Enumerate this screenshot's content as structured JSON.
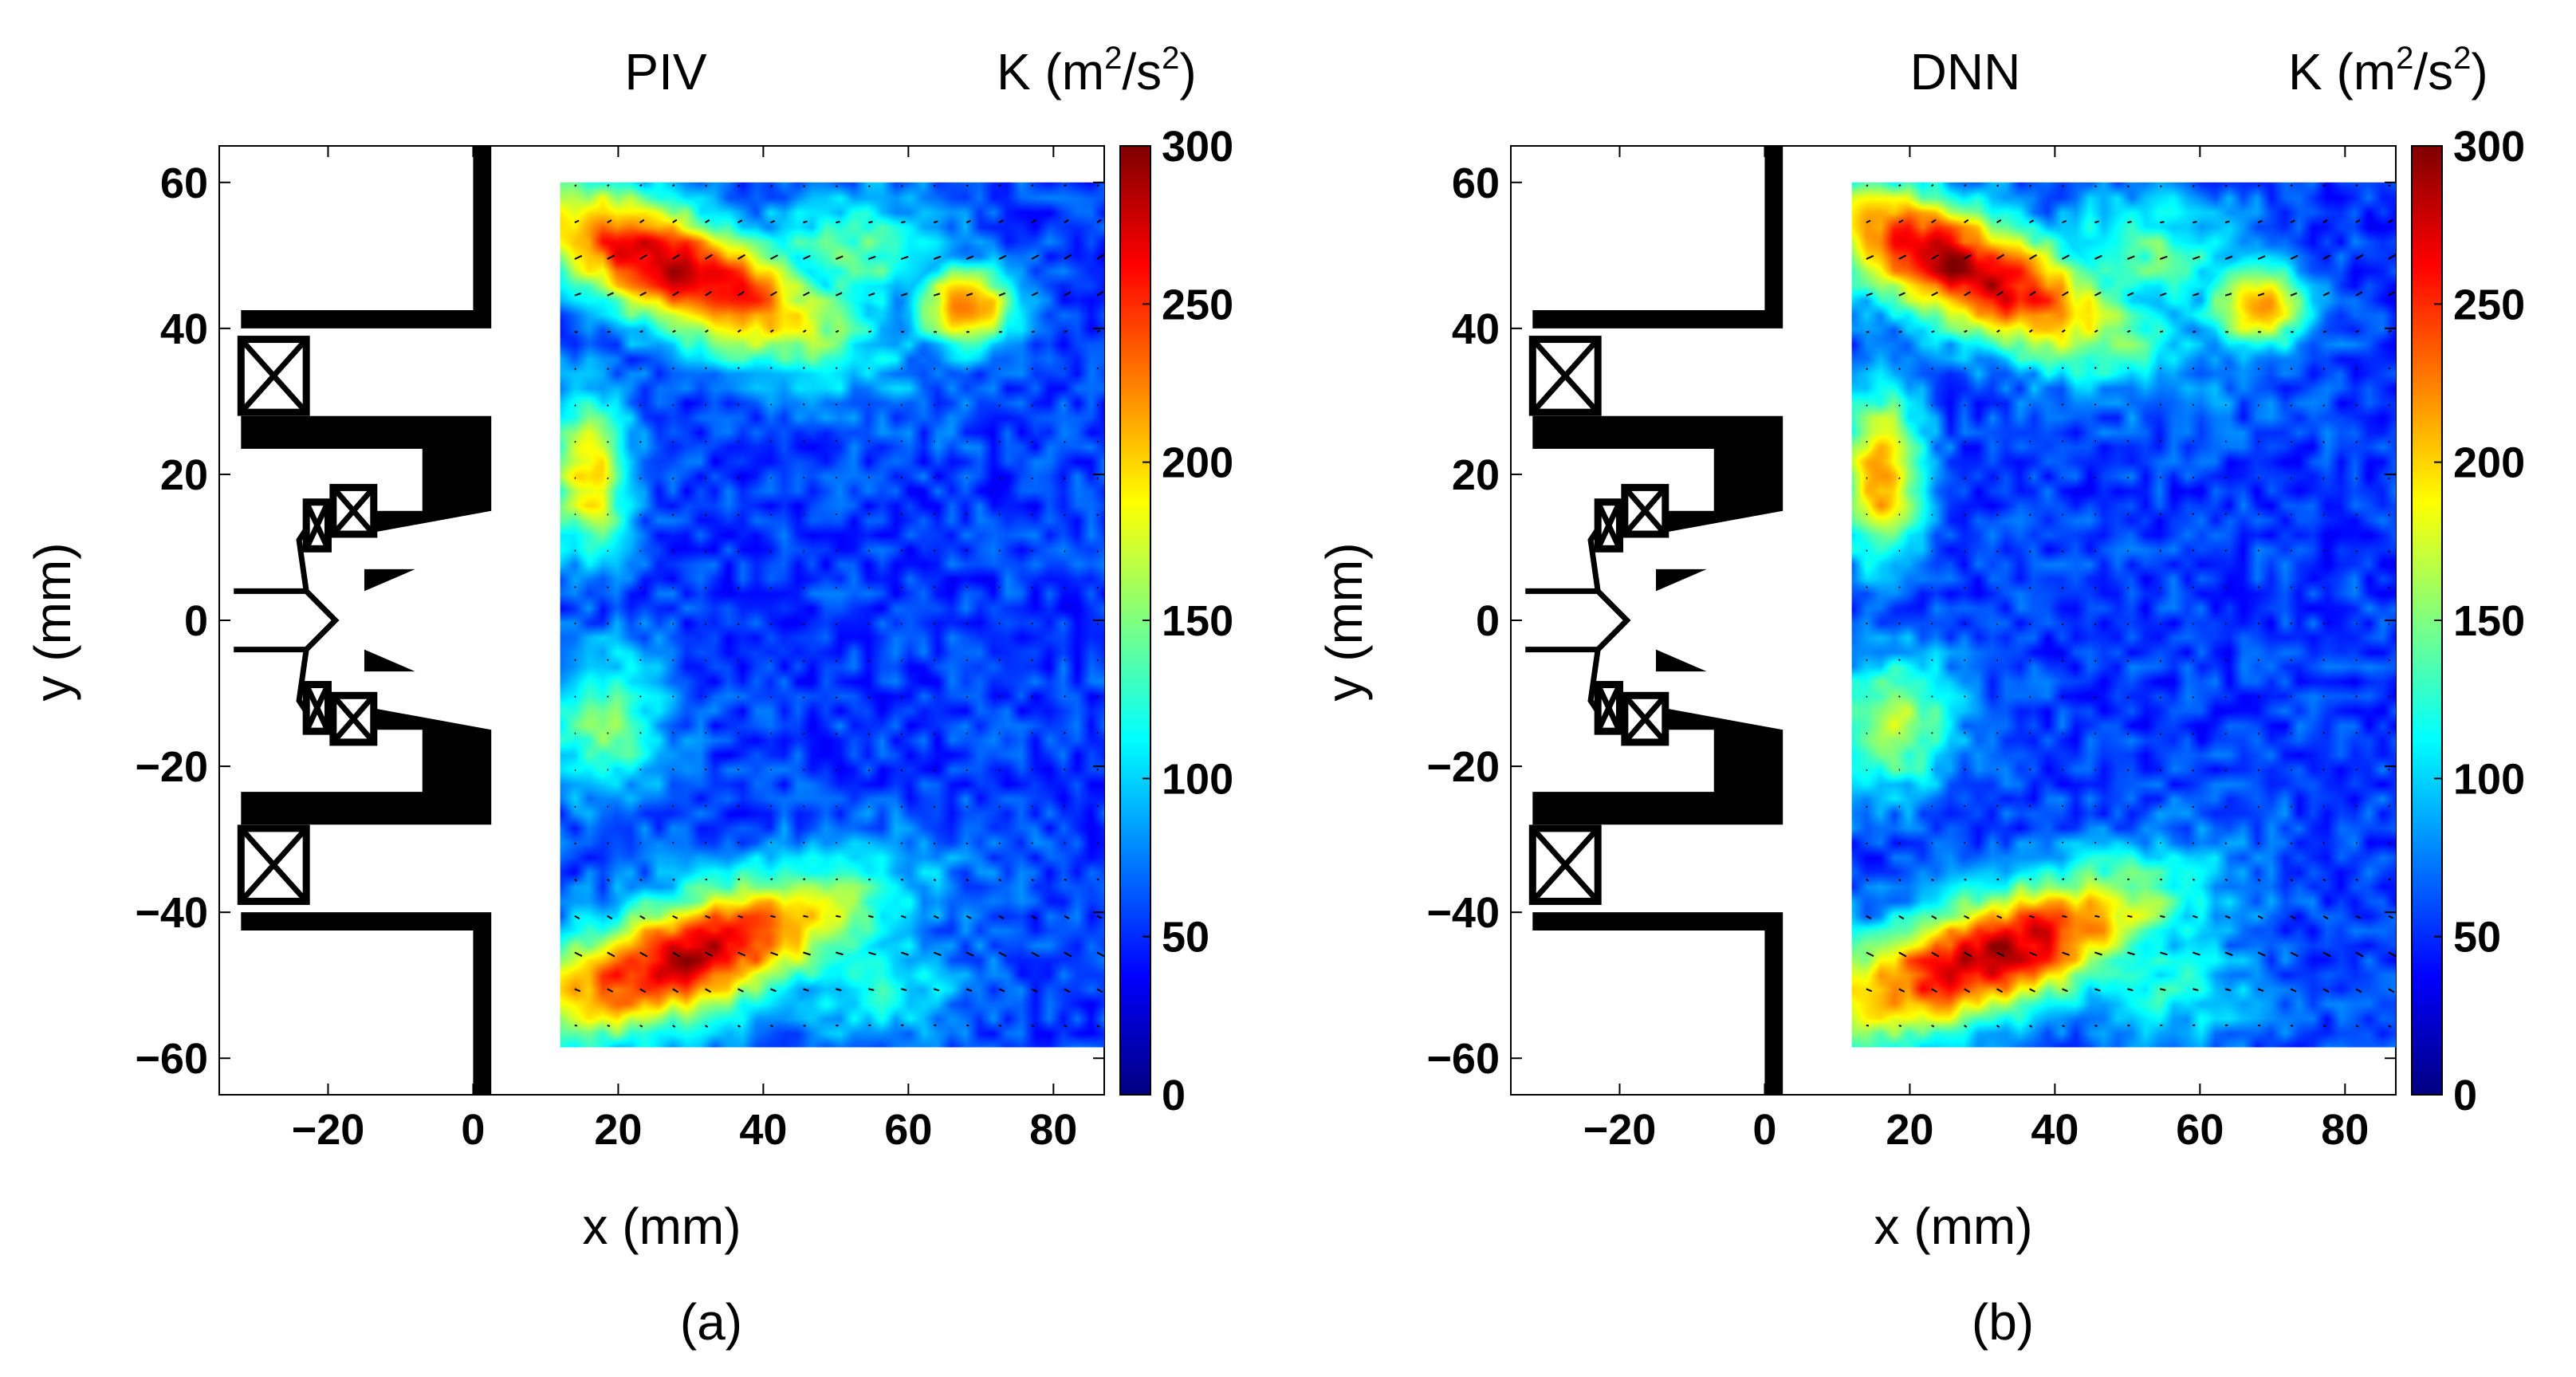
{
  "figure": {
    "background": "#ffffff"
  },
  "colormap": {
    "name": "jet",
    "stops": [
      "#00007f",
      "#0000ff",
      "#007fff",
      "#00ffff",
      "#7fff7f",
      "#ffff00",
      "#ff7f00",
      "#ff0000",
      "#7f0000"
    ]
  },
  "chart_data": [
    {
      "type": "heatmap",
      "panel": "a",
      "title": "PIV",
      "sublabel": "(a)",
      "xlabel": "x (mm)",
      "ylabel": "y (mm)",
      "xlim": [
        -35,
        87
      ],
      "ylim": [
        -65,
        65
      ],
      "xticks": [
        -20,
        0,
        20,
        40,
        60,
        80
      ],
      "xtick_labels": [
        "−20",
        "0",
        "20",
        "40",
        "60",
        "80"
      ],
      "yticks": [
        60,
        40,
        20,
        0,
        -20,
        -40,
        -60
      ],
      "ytick_labels": [
        "60",
        "40",
        "20",
        "0",
        "−20",
        "−40",
        "−60"
      ],
      "field_extent": {
        "x": [
          12,
          87
        ],
        "y": [
          -58.5,
          60
        ]
      },
      "field_features": [
        {
          "name": "upper-shear-layer",
          "x": 28,
          "y": 48,
          "sx": 16,
          "sy": 6,
          "k": 285,
          "tilt": -0.38
        },
        {
          "name": "lower-shear-layer",
          "x": 30,
          "y": -46,
          "sx": 17,
          "sy": 6,
          "k": 280,
          "tilt": 0.3
        },
        {
          "name": "upper-right-patch",
          "x": 68,
          "y": 43,
          "sx": 5,
          "sy": 4,
          "k": 230,
          "tilt": 0
        },
        {
          "name": "upper-mid-patch",
          "x": 52,
          "y": 50,
          "sx": 10,
          "sy": 6,
          "k": 140,
          "tilt": 0
        },
        {
          "name": "left-upper-recirculation",
          "x": 16,
          "y": 20,
          "sx": 4,
          "sy": 8,
          "k": 200,
          "tilt": 0
        },
        {
          "name": "left-lower-recirculation",
          "x": 18,
          "y": -14,
          "sx": 6,
          "sy": 7,
          "k": 150,
          "tilt": 0
        },
        {
          "name": "lower-right-patch",
          "x": 55,
          "y": -50,
          "sx": 9,
          "sy": 6,
          "k": 120,
          "tilt": 0
        }
      ],
      "field_background_k": 55,
      "colorbar": {
        "label_prefix": "K (m",
        "label_sup1": "2",
        "label_mid": "/s",
        "label_sup2": "2",
        "label_suffix": ")",
        "clim": [
          0,
          300
        ],
        "ticks": [
          300,
          250,
          200,
          150,
          100,
          50,
          0
        ],
        "tick_labels": [
          "300",
          "250",
          "200",
          "150",
          "100",
          "50",
          "0"
        ]
      }
    },
    {
      "type": "heatmap",
      "panel": "b",
      "title": "DNN",
      "sublabel": "(b)",
      "xlabel": "x (mm)",
      "ylabel": "y (mm)",
      "xlim": [
        -35,
        87
      ],
      "ylim": [
        -65,
        65
      ],
      "xticks": [
        -20,
        0,
        20,
        40,
        60,
        80
      ],
      "xtick_labels": [
        "−20",
        "0",
        "20",
        "40",
        "60",
        "80"
      ],
      "yticks": [
        60,
        40,
        20,
        0,
        -20,
        -40,
        -60
      ],
      "ytick_labels": [
        "60",
        "40",
        "20",
        "0",
        "−20",
        "−40",
        "−60"
      ],
      "field_extent": {
        "x": [
          12,
          87
        ],
        "y": [
          -58.5,
          60
        ]
      },
      "field_features": [
        {
          "name": "upper-shear-layer",
          "x": 28,
          "y": 48,
          "sx": 16,
          "sy": 6,
          "k": 285,
          "tilt": -0.38
        },
        {
          "name": "lower-shear-layer",
          "x": 31,
          "y": -46,
          "sx": 17,
          "sy": 6,
          "k": 285,
          "tilt": 0.3
        },
        {
          "name": "upper-right-patch",
          "x": 68,
          "y": 43,
          "sx": 5,
          "sy": 4,
          "k": 220,
          "tilt": 0
        },
        {
          "name": "upper-mid-patch",
          "x": 52,
          "y": 50,
          "sx": 10,
          "sy": 6,
          "k": 140,
          "tilt": 0
        },
        {
          "name": "left-upper-recirculation",
          "x": 16,
          "y": 20,
          "sx": 4,
          "sy": 8,
          "k": 225,
          "tilt": 0
        },
        {
          "name": "left-lower-recirculation",
          "x": 18,
          "y": -14,
          "sx": 6,
          "sy": 7,
          "k": 165,
          "tilt": 0
        },
        {
          "name": "lower-right-patch",
          "x": 55,
          "y": -50,
          "sx": 9,
          "sy": 6,
          "k": 120,
          "tilt": 0
        }
      ],
      "field_background_k": 55,
      "colorbar": {
        "label_prefix": "K (m",
        "label_sup1": "2",
        "label_mid": "/s",
        "label_sup2": "2",
        "label_suffix": ")",
        "clim": [
          0,
          300
        ],
        "ticks": [
          300,
          250,
          200,
          150,
          100,
          50,
          0
        ],
        "tick_labels": [
          "300",
          "250",
          "200",
          "150",
          "100",
          "50",
          "0"
        ]
      }
    }
  ]
}
